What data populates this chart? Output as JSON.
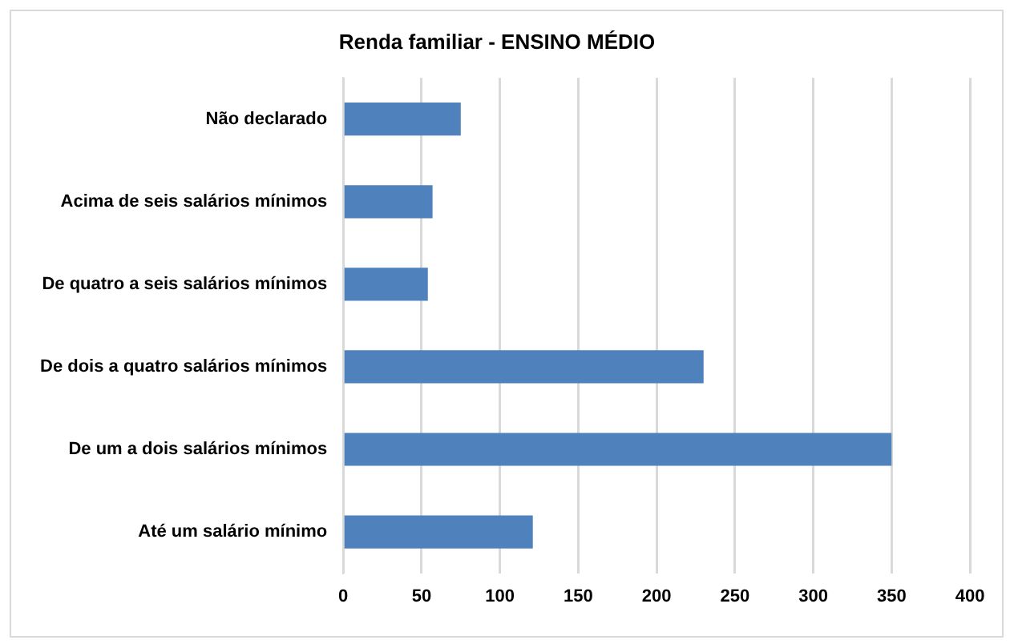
{
  "chart_data": {
    "type": "bar",
    "orientation": "horizontal",
    "title": "Renda familiar - ENSINO MÉDIO",
    "categories": [
      "Não declarado",
      "Acima de seis salários mínimos",
      "De quatro a seis salários mínimos",
      "De dois a quatro salários mínimos",
      "De um a dois salários mínimos",
      "Até um salário mínimo"
    ],
    "values": [
      75,
      57,
      54,
      230,
      350,
      121
    ],
    "color": "#4f81bd",
    "xlim": [
      0,
      400
    ],
    "xticks": [
      0,
      50,
      100,
      150,
      200,
      250,
      300,
      350,
      400
    ],
    "grid": "x",
    "legend": false
  }
}
